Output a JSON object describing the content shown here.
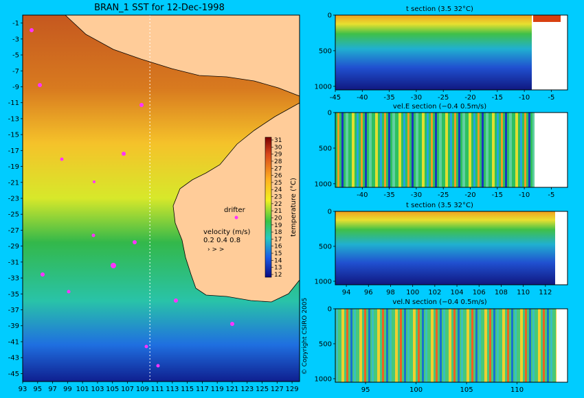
{
  "chart_data": [
    {
      "type": "heatmap",
      "title": "BRAN_1 SST for 12-Dec-1998",
      "x_ticks": [
        "93",
        "95",
        "97",
        "99",
        "101",
        "103",
        "105",
        "107",
        "109",
        "111",
        "113",
        "115",
        "117",
        "119",
        "121",
        "123",
        "125",
        "127",
        "129"
      ],
      "y_ticks": [
        "-1",
        "-3",
        "-5",
        "-7",
        "-9",
        "-11",
        "-13",
        "-15",
        "-17",
        "-19",
        "-21",
        "-23",
        "-25",
        "-27",
        "-29",
        "-31",
        "-33",
        "-35",
        "-37",
        "-39",
        "-41",
        "-43",
        "-45"
      ],
      "xlim": [
        93,
        130
      ],
      "ylim": [
        -46,
        0
      ],
      "colorbar": {
        "label": "temperature (°C)",
        "ticks": [
          "31",
          "30",
          "29",
          "28",
          "27",
          "26",
          "25",
          "24",
          "23",
          "22",
          "21",
          "20",
          "19",
          "18",
          "17",
          "16",
          "15",
          "14",
          "13",
          "12"
        ],
        "range": [
          12,
          31
        ]
      },
      "legend": {
        "drifter_label": "drifter",
        "velocity_label": "velocity (m/s)",
        "velocity_scale": "0.2 0.4 0.8"
      },
      "section_longitude": 110
    },
    {
      "type": "heatmap",
      "title": "t section (3.5      32°C)",
      "x_ticks": [
        "-45",
        "-40",
        "-35",
        "-30",
        "-25",
        "-20",
        "-15",
        "-10",
        "-5"
      ],
      "y_ticks": [
        "0",
        "500",
        "1000"
      ],
      "xlim": [
        -45,
        -2
      ],
      "ylim": [
        1050,
        0
      ]
    },
    {
      "type": "heatmap",
      "title": "vel.E section (−0.4      0.5m/s)",
      "x_ticks": [
        "-40",
        "-35",
        "-30",
        "-25",
        "-20",
        "-15",
        "-10",
        "-5"
      ],
      "y_ticks": [
        "0",
        "500",
        "1000"
      ],
      "xlim": [
        -45,
        -2
      ],
      "ylim": [
        1050,
        0
      ]
    },
    {
      "type": "heatmap",
      "title": "t section (3.5      32°C)",
      "x_ticks": [
        "94",
        "96",
        "98",
        "100",
        "102",
        "104",
        "106",
        "108",
        "110",
        "112"
      ],
      "y_ticks": [
        "0",
        "500",
        "1000"
      ],
      "xlim": [
        93,
        114
      ],
      "ylim": [
        1050,
        0
      ]
    },
    {
      "type": "heatmap",
      "title": "vel.N section (−0.4      0.5m/s)",
      "x_ticks": [
        "95",
        "100",
        "105",
        "110"
      ],
      "y_ticks": [
        "0",
        "500",
        "1000"
      ],
      "xlim": [
        92,
        115
      ],
      "ylim": [
        1050,
        0
      ]
    }
  ],
  "copyright": "© Copyright CSIRO 2005"
}
